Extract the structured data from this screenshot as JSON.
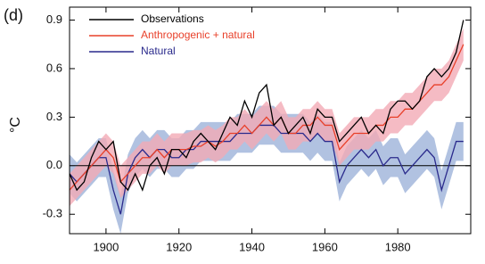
{
  "chart_data": {
    "type": "line",
    "panel_label": "(d)",
    "y_label": "°C",
    "x": [
      1890,
      1892,
      1894,
      1896,
      1898,
      1900,
      1902,
      1904,
      1906,
      1908,
      1910,
      1912,
      1914,
      1916,
      1918,
      1920,
      1922,
      1924,
      1926,
      1928,
      1930,
      1932,
      1934,
      1936,
      1938,
      1940,
      1942,
      1944,
      1946,
      1948,
      1950,
      1952,
      1954,
      1956,
      1958,
      1960,
      1962,
      1964,
      1966,
      1968,
      1970,
      1972,
      1974,
      1976,
      1978,
      1980,
      1982,
      1984,
      1986,
      1988,
      1990,
      1992,
      1994,
      1996,
      1998
    ],
    "series": [
      {
        "name": "Observations",
        "color": "#000000",
        "values": [
          -0.05,
          -0.15,
          -0.1,
          0.05,
          0.15,
          0.1,
          0.15,
          -0.1,
          -0.15,
          -0.05,
          -0.15,
          0.0,
          0.05,
          -0.05,
          0.1,
          0.1,
          0.05,
          0.15,
          0.2,
          0.15,
          0.1,
          0.2,
          0.3,
          0.25,
          0.4,
          0.3,
          0.45,
          0.5,
          0.25,
          0.3,
          0.2,
          0.25,
          0.3,
          0.2,
          0.35,
          0.3,
          0.3,
          0.15,
          0.2,
          0.25,
          0.3,
          0.2,
          0.25,
          0.2,
          0.35,
          0.4,
          0.4,
          0.35,
          0.4,
          0.55,
          0.6,
          0.55,
          0.6,
          0.7,
          0.9
        ]
      },
      {
        "name": "Anthropogenic + natural",
        "color": "#e8402a",
        "band": 0.1,
        "band_color": "#f2aab5",
        "values": [
          -0.15,
          -0.1,
          -0.05,
          0.0,
          0.05,
          0.1,
          0.05,
          -0.1,
          -0.05,
          0.0,
          0.05,
          0.05,
          0.1,
          0.05,
          0.1,
          0.1,
          0.1,
          0.12,
          0.12,
          0.15,
          0.12,
          0.15,
          0.2,
          0.2,
          0.25,
          0.2,
          0.25,
          0.3,
          0.25,
          0.3,
          0.2,
          0.2,
          0.25,
          0.25,
          0.3,
          0.25,
          0.25,
          0.1,
          0.15,
          0.2,
          0.2,
          0.2,
          0.25,
          0.25,
          0.3,
          0.3,
          0.35,
          0.35,
          0.4,
          0.45,
          0.5,
          0.5,
          0.55,
          0.65,
          0.75
        ]
      },
      {
        "name": "Natural",
        "color": "#2a2a8c",
        "band": 0.12,
        "band_color": "#9db3d9",
        "values": [
          -0.05,
          -0.1,
          -0.05,
          0.0,
          0.05,
          0.05,
          -0.15,
          -0.3,
          -0.05,
          0.05,
          0.1,
          0.05,
          0.1,
          0.1,
          0.05,
          0.05,
          0.1,
          0.1,
          0.15,
          0.15,
          0.15,
          0.15,
          0.15,
          0.2,
          0.2,
          0.2,
          0.25,
          0.25,
          0.25,
          0.2,
          0.2,
          0.2,
          0.2,
          0.15,
          0.2,
          0.15,
          0.15,
          -0.1,
          0.0,
          0.05,
          0.1,
          0.05,
          0.1,
          0.0,
          0.05,
          0.05,
          -0.05,
          0.0,
          0.05,
          0.1,
          0.05,
          -0.15,
          0.0,
          0.15,
          0.15
        ]
      }
    ],
    "xlim": [
      1890,
      2000
    ],
    "xticks": [
      1900,
      1920,
      1940,
      1960,
      1980
    ],
    "ylim": [
      -0.42,
      0.98
    ],
    "yticks": [
      {
        "value": -0.3,
        "label": "-0.3"
      },
      {
        "value": 0,
        "label": "0.0"
      },
      {
        "value": 0.3,
        "label": "0.3"
      },
      {
        "value": 0.6,
        "label": "0.6"
      },
      {
        "value": 0.9,
        "label": "0.9"
      }
    ],
    "zero_line": true
  }
}
